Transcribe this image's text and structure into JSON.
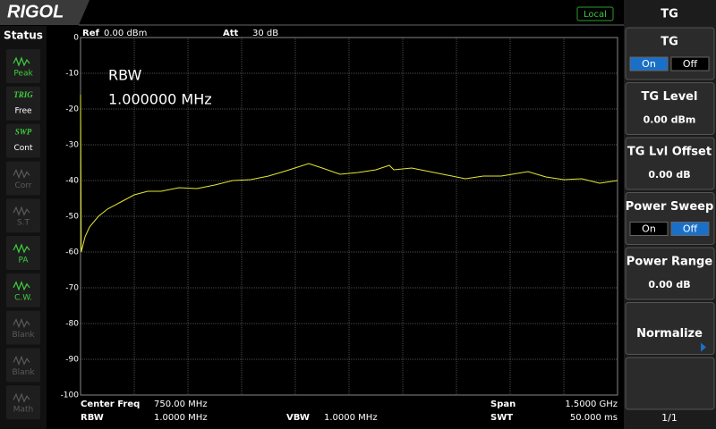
{
  "header": {
    "logo": "RIGOL",
    "mode": "Local"
  },
  "status": {
    "title": "Status",
    "items": [
      {
        "label": "Peak",
        "enabled": true
      },
      {
        "tag": "TRIG",
        "label": "Free",
        "enabled": true
      },
      {
        "tag": "SWP",
        "label": "Cont",
        "enabled": true
      },
      {
        "label": "Corr",
        "enabled": false
      },
      {
        "label": "S.T",
        "enabled": false
      },
      {
        "label": "PA",
        "enabled": true
      },
      {
        "label": "C.W.",
        "enabled": true
      },
      {
        "label": "Blank",
        "enabled": false
      },
      {
        "label": "Blank",
        "enabled": false
      },
      {
        "label": "Math",
        "enabled": false
      }
    ]
  },
  "chart_data": {
    "type": "line",
    "ref": {
      "label": "Ref",
      "value": "0.00 dBm"
    },
    "att": {
      "label": "Att",
      "value": "30 dB"
    },
    "marker_text": [
      "RBW",
      "1.000000 MHz"
    ],
    "footer": [
      {
        "label": "Center Freq",
        "value": "750.00 MHz"
      },
      {
        "label": "RBW",
        "value": "1.0000 MHz"
      },
      {
        "label": "VBW",
        "value": "1.0000 MHz"
      },
      {
        "label": "Span",
        "value": "1.5000 GHz"
      },
      {
        "label": "SWT",
        "value": "50.000 ms"
      }
    ],
    "x": [
      0,
      2,
      12.5,
      25,
      50,
      75,
      112.5,
      150,
      187.5,
      225,
      275,
      325,
      375,
      425,
      475,
      525,
      575,
      637.5,
      675,
      725,
      775,
      825,
      862.5,
      875,
      925,
      975,
      1025,
      1075,
      1125,
      1175,
      1250,
      1300,
      1350,
      1400,
      1450,
      1500
    ],
    "series": [
      {
        "color": "#e6e632",
        "values": [
          -16,
          -60,
          -55.75,
          -53,
          -50,
          -48,
          -46,
          -44,
          -43,
          -43,
          -42,
          -42.25,
          -41.25,
          -40,
          -39.75,
          -38.75,
          -37.25,
          -35.25,
          -36.5,
          -38.25,
          -37.75,
          -37,
          -35.75,
          -37,
          -36.5,
          -37.5,
          -38.5,
          -39.5,
          -38.75,
          -38.75,
          -37.5,
          -39,
          -39.75,
          -39.5,
          -40.75,
          -40
        ]
      }
    ],
    "xlim": [
      0,
      1500
    ],
    "ylim": [
      -100,
      0
    ],
    "yticks": [
      0,
      -10,
      -20,
      -30,
      -40,
      -50,
      -60,
      -70,
      -80,
      -90,
      -100
    ],
    "grid": true
  },
  "menu": {
    "title": "TG",
    "buttons": [
      {
        "label": "TG",
        "options": [
          "On",
          "Off"
        ],
        "selected": 0
      },
      {
        "label": "TG Level",
        "value": "0.00 dBm"
      },
      {
        "label": "TG Lvl Offset",
        "value": "0.00 dB"
      },
      {
        "label": "Power Sweep",
        "options": [
          "On",
          "Off"
        ],
        "selected": 1
      },
      {
        "label": "Power Range",
        "value": "0.00 dB"
      },
      {
        "label": "Normalize",
        "submenu": true
      }
    ]
  },
  "page": "1/1"
}
